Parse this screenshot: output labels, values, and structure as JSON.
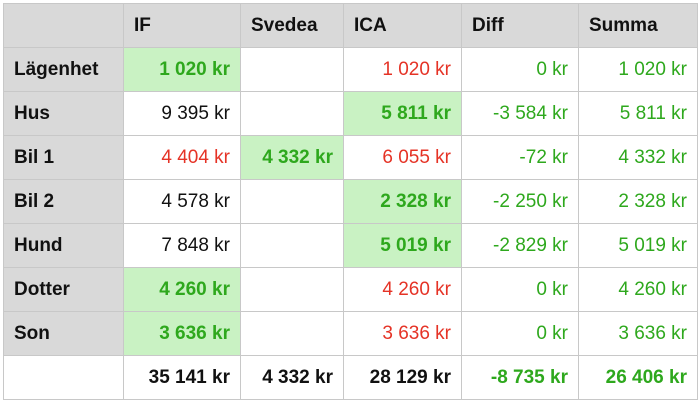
{
  "table": {
    "columns": [
      "IF",
      "Svedea",
      "ICA",
      "Diff",
      "Summa"
    ],
    "rows": [
      {
        "label": "Lägenhet",
        "cells": [
          "1 020 kr",
          null,
          "1 020 kr",
          "0 kr",
          "1 020 kr"
        ]
      },
      {
        "label": "Hus",
        "cells": [
          "9 395 kr",
          null,
          "5 811 kr",
          "-3 584 kr",
          "5 811 kr"
        ]
      },
      {
        "label": "Bil 1",
        "cells": [
          "4 404 kr",
          "4 332 kr",
          "6 055 kr",
          "-72 kr",
          "4 332 kr"
        ]
      },
      {
        "label": "Bil 2",
        "cells": [
          "4 578 kr",
          null,
          "2 328 kr",
          "-2 250 kr",
          "2 328 kr"
        ]
      },
      {
        "label": "Hund",
        "cells": [
          "7 848 kr",
          null,
          "5 019 kr",
          "-2 829 kr",
          "5 019 kr"
        ]
      },
      {
        "label": "Dotter",
        "cells": [
          "4 260 kr",
          null,
          "4 260 kr",
          "0 kr",
          "4 260 kr"
        ]
      },
      {
        "label": "Son",
        "cells": [
          "3 636 kr",
          null,
          "3 636 kr",
          "0 kr",
          "3 636 kr"
        ]
      }
    ],
    "totals": [
      "35 141 kr",
      "4 332 kr",
      "28 129 kr",
      "-8 735 kr",
      "26 406 kr"
    ]
  }
}
